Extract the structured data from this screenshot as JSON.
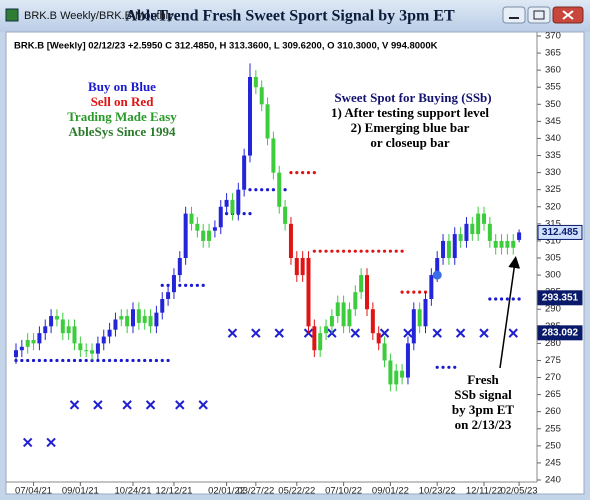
{
  "chart_data": {
    "type": "candlestick",
    "window_title": "BRK.B Weekly/BRK.B Monthly",
    "title": "AbleTrend Fresh Sweet Sport Signal by 3pm ET",
    "header": "BRK.B [Weekly] 02/12/23 +2.5950 C 312.4850, H 313.3600, L 309.6200, O 310.3000, V 994.8000K",
    "categories": [
      null,
      null,
      null,
      "07/04/21",
      null,
      null,
      null,
      null,
      null,
      null,
      null,
      "09/01/21",
      null,
      null,
      null,
      null,
      null,
      null,
      null,
      null,
      "10/24/21",
      null,
      null,
      null,
      null,
      null,
      null,
      "12/12/21",
      null,
      null,
      null,
      null,
      null,
      null,
      null,
      null,
      "02/01/22",
      null,
      null,
      null,
      null,
      "03/27/22",
      null,
      null,
      null,
      null,
      null,
      null,
      "05/22/22",
      null,
      null,
      null,
      null,
      null,
      null,
      null,
      "07/10/22",
      null,
      null,
      null,
      null,
      null,
      null,
      null,
      "09/01/22",
      null,
      null,
      null,
      null,
      null,
      null,
      null,
      "10/23/22",
      null,
      null,
      null,
      null,
      null,
      null,
      null,
      "12/11/22",
      null,
      null,
      null,
      null,
      null,
      "02/05/23"
    ],
    "open": [
      276,
      278,
      279,
      281,
      280,
      283,
      285,
      288,
      287,
      283,
      285,
      280,
      278,
      278,
      277,
      280,
      282,
      284,
      287,
      288,
      285,
      290,
      286,
      288,
      285,
      289,
      293,
      295,
      300,
      305,
      318,
      315,
      313,
      310,
      313,
      314,
      320,
      322,
      318,
      325,
      335,
      358,
      355,
      350,
      340,
      330,
      320,
      315,
      305,
      300,
      305,
      285,
      278,
      283,
      285,
      288,
      292,
      285,
      290,
      295,
      300,
      290,
      283,
      280,
      275,
      268,
      272,
      270,
      280,
      290,
      285,
      293,
      300,
      305,
      310,
      305,
      312,
      310,
      315,
      312,
      318,
      315,
      310,
      308,
      310,
      308,
      310.3
    ],
    "high": [
      280,
      281,
      283,
      283,
      285,
      287,
      290,
      290,
      289,
      287,
      287,
      282,
      280,
      280,
      282,
      284,
      286,
      289,
      290,
      290,
      292,
      292,
      290,
      290,
      291,
      295,
      297,
      302,
      307,
      320,
      320,
      317,
      315,
      315,
      316,
      322,
      324,
      324,
      327,
      337,
      362,
      360,
      357,
      352,
      342,
      332,
      322,
      317,
      307,
      307,
      307,
      287,
      285,
      287,
      290,
      294,
      294,
      292,
      297,
      302,
      302,
      292,
      285,
      282,
      277,
      274,
      274,
      282,
      292,
      292,
      295,
      302,
      307,
      312,
      312,
      314,
      314,
      317,
      317,
      320,
      320,
      317,
      312,
      312,
      312,
      312,
      313.36
    ],
    "low": [
      274,
      276,
      277,
      278,
      278,
      281,
      283,
      285,
      281,
      281,
      278,
      276,
      276,
      275,
      275,
      278,
      280,
      282,
      285,
      283,
      283,
      284,
      284,
      283,
      283,
      287,
      291,
      293,
      298,
      303,
      313,
      311,
      308,
      308,
      311,
      312,
      318,
      316,
      316,
      323,
      333,
      353,
      348,
      338,
      328,
      318,
      313,
      303,
      298,
      298,
      283,
      276,
      276,
      281,
      283,
      286,
      283,
      283,
      288,
      293,
      288,
      281,
      278,
      273,
      266,
      266,
      268,
      268,
      278,
      283,
      283,
      291,
      298,
      303,
      303,
      303,
      308,
      308,
      310,
      310,
      313,
      308,
      306,
      306,
      306,
      306,
      309.62
    ],
    "close": [
      278,
      279,
      281,
      280,
      283,
      285,
      288,
      287,
      283,
      285,
      280,
      278,
      278,
      277,
      280,
      282,
      284,
      287,
      288,
      285,
      290,
      286,
      288,
      285,
      289,
      293,
      295,
      300,
      305,
      318,
      315,
      313,
      310,
      313,
      314,
      320,
      322,
      318,
      325,
      335,
      358,
      355,
      350,
      340,
      330,
      320,
      315,
      305,
      300,
      305,
      285,
      278,
      283,
      285,
      288,
      292,
      285,
      290,
      295,
      300,
      290,
      283,
      280,
      275,
      268,
      272,
      270,
      280,
      290,
      285,
      293,
      300,
      305,
      310,
      305,
      312,
      310,
      315,
      312,
      318,
      315,
      310,
      308,
      310,
      308,
      310,
      312.485
    ],
    "signals": [
      "b",
      "b",
      "g",
      "g",
      "b",
      "b",
      "b",
      "g",
      "g",
      "g",
      "g",
      "g",
      "g",
      "g",
      "b",
      "b",
      "b",
      "b",
      "g",
      "g",
      "b",
      "g",
      "g",
      "g",
      "b",
      "b",
      "b",
      "b",
      "b",
      "b",
      "g",
      "g",
      "g",
      "g",
      "b",
      "b",
      "b",
      "g",
      "b",
      "b",
      "b",
      "g",
      "g",
      "g",
      "g",
      "g",
      "g",
      "r",
      "r",
      "r",
      "r",
      "r",
      "g",
      "g",
      "g",
      "g",
      "g",
      "g",
      "g",
      "g",
      "r",
      "r",
      "r",
      "g",
      "g",
      "g",
      "g",
      "b",
      "b",
      "g",
      "b",
      "b",
      "b",
      "b",
      "g",
      "b",
      "g",
      "b",
      "g",
      "g",
      "g",
      "g",
      "g",
      "g",
      "g",
      "g",
      "b"
    ],
    "colors": {
      "b": "#2424d8",
      "g": "#3ccc3c",
      "r": "#e01414"
    },
    "dot_lines": [
      {
        "level": 275,
        "from": 0,
        "to": 26,
        "color": "#1a1ad0"
      },
      {
        "level": 297,
        "from": 25,
        "to": 32,
        "color": "#1a1ad0"
      },
      {
        "level": 318,
        "from": 36,
        "to": 40,
        "color": "#1a1ad0"
      },
      {
        "level": 325,
        "from": 40,
        "to": 46,
        "color": "#1a1ad0"
      },
      {
        "level": 330,
        "from": 47,
        "to": 51,
        "color": "#e01414"
      },
      {
        "level": 307,
        "from": 51,
        "to": 66,
        "color": "#e01414"
      },
      {
        "level": 295,
        "from": 66,
        "to": 71,
        "color": "#e01414"
      },
      {
        "level": 273,
        "from": 72,
        "to": 75,
        "color": "#1a1ad0"
      },
      {
        "level": 293,
        "from": 81,
        "to": 86,
        "color": "#1a1ad0"
      }
    ],
    "x_markers": [
      {
        "index": 2,
        "value": 251
      },
      {
        "index": 6,
        "value": 251
      },
      {
        "index": 10,
        "value": 262
      },
      {
        "index": 14,
        "value": 262
      },
      {
        "index": 19,
        "value": 262
      },
      {
        "index": 23,
        "value": 262
      },
      {
        "index": 28,
        "value": 262
      },
      {
        "index": 32,
        "value": 262
      },
      {
        "index": 37,
        "value": 283
      },
      {
        "index": 41,
        "value": 283
      },
      {
        "index": 45,
        "value": 283
      },
      {
        "index": 50,
        "value": 283
      },
      {
        "index": 54,
        "value": 283
      },
      {
        "index": 58,
        "value": 283
      },
      {
        "index": 63,
        "value": 283
      },
      {
        "index": 67,
        "value": 283
      },
      {
        "index": 72,
        "value": 283
      },
      {
        "index": 76,
        "value": 283
      },
      {
        "index": 80,
        "value": 283
      },
      {
        "index": 85,
        "value": 283
      }
    ],
    "marker_color": "#2020d0",
    "signal_dot": {
      "index": 72,
      "value": 300,
      "color": "#3a6ee8"
    },
    "price_labels": [
      312.485,
      293.351,
      283.092
    ],
    "ylim": [
      240,
      370
    ],
    "yticks": [
      240,
      245,
      250,
      255,
      260,
      265,
      270,
      275,
      280,
      285,
      290,
      295,
      300,
      305,
      310,
      315,
      320,
      325,
      330,
      335,
      340,
      345,
      350,
      355,
      360,
      365,
      370
    ],
    "annotations": [
      {
        "text": "Buy on Blue",
        "color": "#1a1ad0"
      },
      {
        "text": "Sell on Red",
        "color": "#e01414"
      },
      {
        "text": "Trading Made Easy",
        "color": "#2a9a2a"
      },
      {
        "text": "AbleSys Since 1994",
        "color": "#2a7a2a"
      },
      {
        "text": "Sweet Spot for Buying (SSb)",
        "color": "#141470"
      },
      {
        "text": "1) After testing support level",
        "color": "#000000"
      },
      {
        "text": "2) Emerging blue bar",
        "color": "#000000"
      },
      {
        "text": "or closeup bar",
        "color": "#000000"
      },
      {
        "text": "Fresh",
        "color": "#000000"
      },
      {
        "text": "SSb signal",
        "color": "#000000"
      },
      {
        "text": "by 3pm ET",
        "color": "#000000"
      },
      {
        "text": "on 2/13/23",
        "color": "#000000"
      }
    ]
  }
}
